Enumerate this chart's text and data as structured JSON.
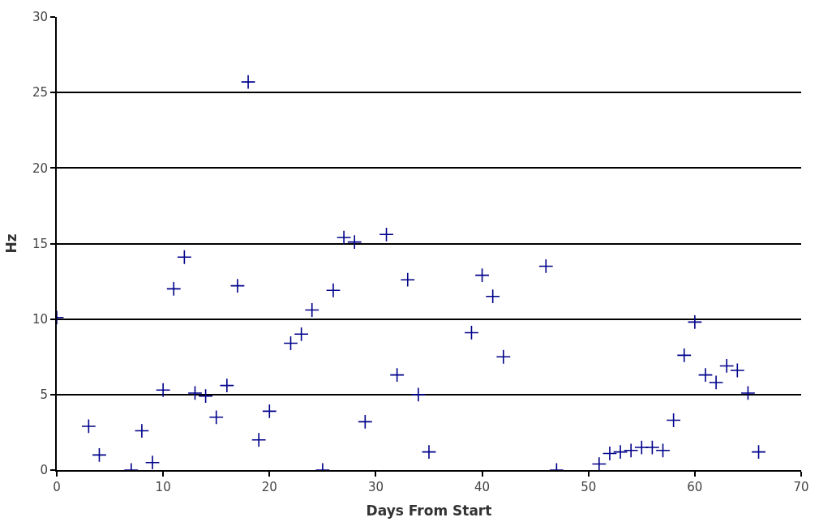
{
  "chart_data": {
    "type": "scatter",
    "xlabel": "Days From Start",
    "ylabel": "Hz",
    "x": [
      0,
      3,
      4,
      7,
      8,
      9,
      10,
      11,
      12,
      13,
      14,
      15,
      16,
      17,
      18,
      19,
      20,
      22,
      23,
      24,
      25,
      26,
      27,
      28,
      29,
      31,
      32,
      33,
      34,
      35,
      39,
      40,
      41,
      42,
      46,
      47,
      51,
      52,
      53,
      54,
      55,
      56,
      57,
      58,
      59,
      60,
      61,
      62,
      63,
      64,
      65,
      66
    ],
    "series": [
      {
        "color": "#00008b",
        "values": [
          10.1,
          2.9,
          1.0,
          0,
          2.6,
          0.5,
          5.3,
          12.0,
          14.1,
          5.1,
          4.9,
          3.5,
          5.6,
          12.2,
          25.7,
          2.0,
          3.9,
          8.4,
          9.0,
          10.6,
          0,
          11.9,
          15.4,
          15.1,
          3.2,
          15.6,
          6.3,
          12.6,
          5.0,
          1.2,
          9.1,
          12.9,
          11.5,
          7.5,
          13.5,
          0,
          0.4,
          1.1,
          1.2,
          1.3,
          1.5,
          1.5,
          1.3,
          3.3,
          7.6,
          9.8,
          6.3,
          5.8,
          6.9,
          6.6,
          5.1,
          1.2
        ]
      }
    ],
    "xlim": [
      0,
      70
    ],
    "xticks": [
      0,
      10,
      20,
      30,
      40,
      50,
      60,
      70
    ],
    "ylim": [
      0,
      30
    ],
    "yticks": [
      0,
      5,
      10,
      15,
      20,
      25,
      30
    ],
    "grid": "y",
    "marker": "cross",
    "legend": false
  }
}
